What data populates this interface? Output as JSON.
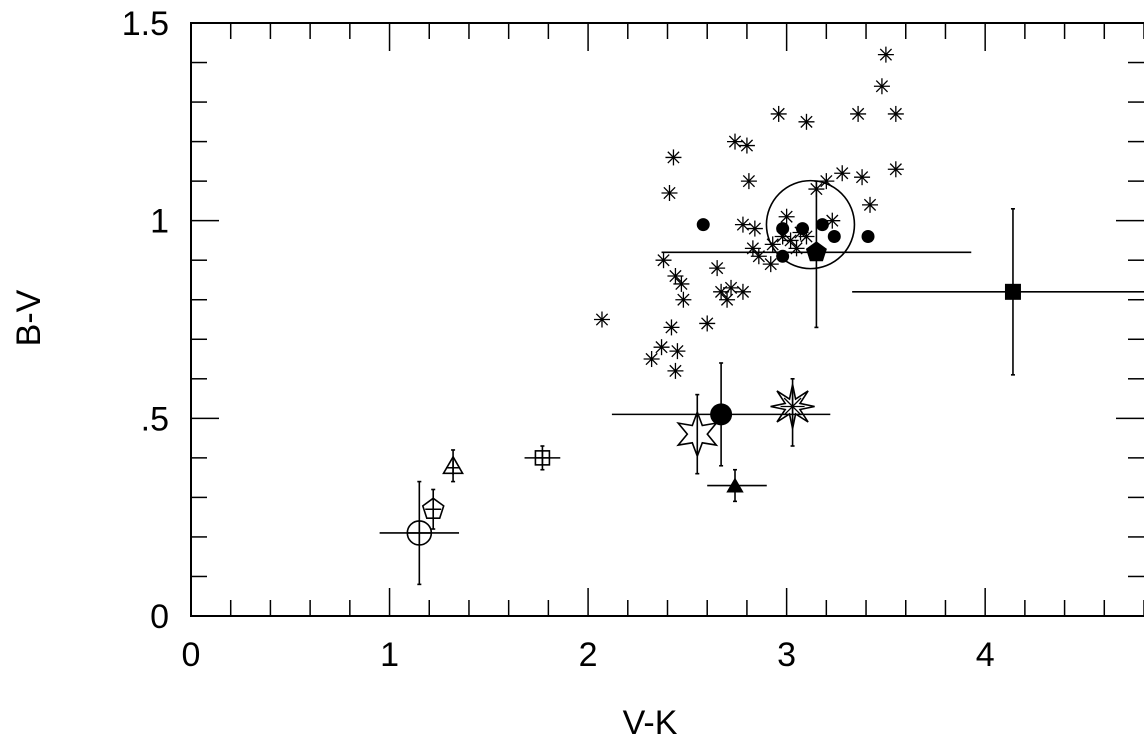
{
  "chart_data": {
    "type": "scatter",
    "xlabel": "V-K",
    "ylabel": "B-V",
    "xlim": [
      0,
      4.8
    ],
    "ylim": [
      0,
      1.5
    ],
    "x_ticks": [
      {
        "value": 0,
        "label": "0"
      },
      {
        "value": 1,
        "label": "1"
      },
      {
        "value": 2,
        "label": "2"
      },
      {
        "value": 3,
        "label": "3"
      },
      {
        "value": 4,
        "label": "4"
      }
    ],
    "y_ticks": [
      {
        "value": 0,
        "label": "0"
      },
      {
        "value": 0.5,
        "label": ".5"
      },
      {
        "value": 1,
        "label": "1"
      },
      {
        "value": 1.5,
        "label": "1.5"
      }
    ],
    "minor_x_step": 0.2,
    "minor_y_step": 0.1,
    "grid": false,
    "series": [
      {
        "marker": "asterisk-small",
        "points": [
          [
            3.5,
            1.42
          ],
          [
            3.48,
            1.34
          ],
          [
            3.55,
            1.27
          ],
          [
            2.96,
            1.27
          ],
          [
            3.1,
            1.25
          ],
          [
            3.36,
            1.27
          ],
          [
            2.74,
            1.2
          ],
          [
            2.8,
            1.19
          ],
          [
            2.43,
            1.16
          ],
          [
            3.55,
            1.13
          ],
          [
            3.28,
            1.12
          ],
          [
            3.38,
            1.11
          ],
          [
            3.2,
            1.1
          ],
          [
            2.81,
            1.1
          ],
          [
            3.15,
            1.08
          ],
          [
            2.41,
            1.07
          ],
          [
            3.42,
            1.04
          ],
          [
            3.0,
            1.01
          ],
          [
            2.78,
            0.99
          ],
          [
            2.84,
            0.98
          ],
          [
            3.23,
            1.0
          ],
          [
            3.07,
            0.97
          ],
          [
            2.98,
            0.96
          ],
          [
            3.02,
            0.95
          ],
          [
            3.1,
            0.96
          ],
          [
            2.93,
            0.94
          ],
          [
            3.05,
            0.93
          ],
          [
            2.83,
            0.93
          ],
          [
            2.86,
            0.91
          ],
          [
            2.38,
            0.9
          ],
          [
            2.92,
            0.89
          ],
          [
            2.65,
            0.88
          ],
          [
            2.44,
            0.86
          ],
          [
            2.47,
            0.84
          ],
          [
            2.72,
            0.83
          ],
          [
            2.67,
            0.82
          ],
          [
            2.78,
            0.82
          ],
          [
            2.48,
            0.8
          ],
          [
            2.7,
            0.8
          ],
          [
            2.07,
            0.75
          ],
          [
            2.6,
            0.74
          ],
          [
            2.42,
            0.73
          ],
          [
            2.37,
            0.68
          ],
          [
            2.45,
            0.67
          ],
          [
            2.32,
            0.65
          ],
          [
            2.44,
            0.62
          ]
        ]
      },
      {
        "marker": "filled-circle",
        "points": [
          [
            2.58,
            0.99
          ],
          [
            2.98,
            0.98
          ],
          [
            3.08,
            0.98
          ],
          [
            3.18,
            0.99
          ],
          [
            3.24,
            0.96
          ],
          [
            3.41,
            0.96
          ],
          [
            2.98,
            0.91
          ]
        ]
      }
    ],
    "special_points": [
      {
        "marker": "big-open-circle",
        "x": 3.12,
        "y": 0.99
      },
      {
        "marker": "filled-pentagon",
        "x": 3.15,
        "y": 0.92,
        "xerr": [
          2.37,
          3.93
        ],
        "yerr": [
          0.73,
          1.1
        ]
      },
      {
        "marker": "filled-square",
        "x": 4.14,
        "y": 0.82,
        "xerr": [
          3.33,
          4.8
        ],
        "yerr": [
          0.61,
          1.03
        ]
      },
      {
        "marker": "filled-circle-large",
        "x": 2.67,
        "y": 0.51,
        "xerr": [
          2.12,
          3.22
        ],
        "yerr": [
          0.38,
          0.64
        ]
      },
      {
        "marker": "open-star-6",
        "x": 2.55,
        "y": 0.46,
        "yerr": [
          0.36,
          0.56
        ]
      },
      {
        "marker": "open-burst",
        "x": 3.03,
        "y": 0.53,
        "yerr": [
          0.43,
          0.6
        ]
      },
      {
        "marker": "filled-triangle",
        "x": 2.74,
        "y": 0.33,
        "xerr": [
          2.6,
          2.9
        ],
        "yerr": [
          0.29,
          0.37
        ]
      },
      {
        "marker": "open-square-cross",
        "x": 1.77,
        "y": 0.4,
        "xerr": [
          1.68,
          1.86
        ],
        "yerr": [
          0.37,
          0.43
        ]
      },
      {
        "marker": "open-triangle-cross",
        "x": 1.32,
        "y": 0.38,
        "yerr": [
          0.34,
          0.42
        ]
      },
      {
        "marker": "open-pentagon-cross",
        "x": 1.22,
        "y": 0.27,
        "yerr": [
          0.22,
          0.32
        ]
      },
      {
        "marker": "open-circle-cross",
        "x": 1.15,
        "y": 0.21,
        "xerr": [
          0.95,
          1.35
        ],
        "yerr": [
          0.08,
          0.34
        ]
      }
    ]
  }
}
